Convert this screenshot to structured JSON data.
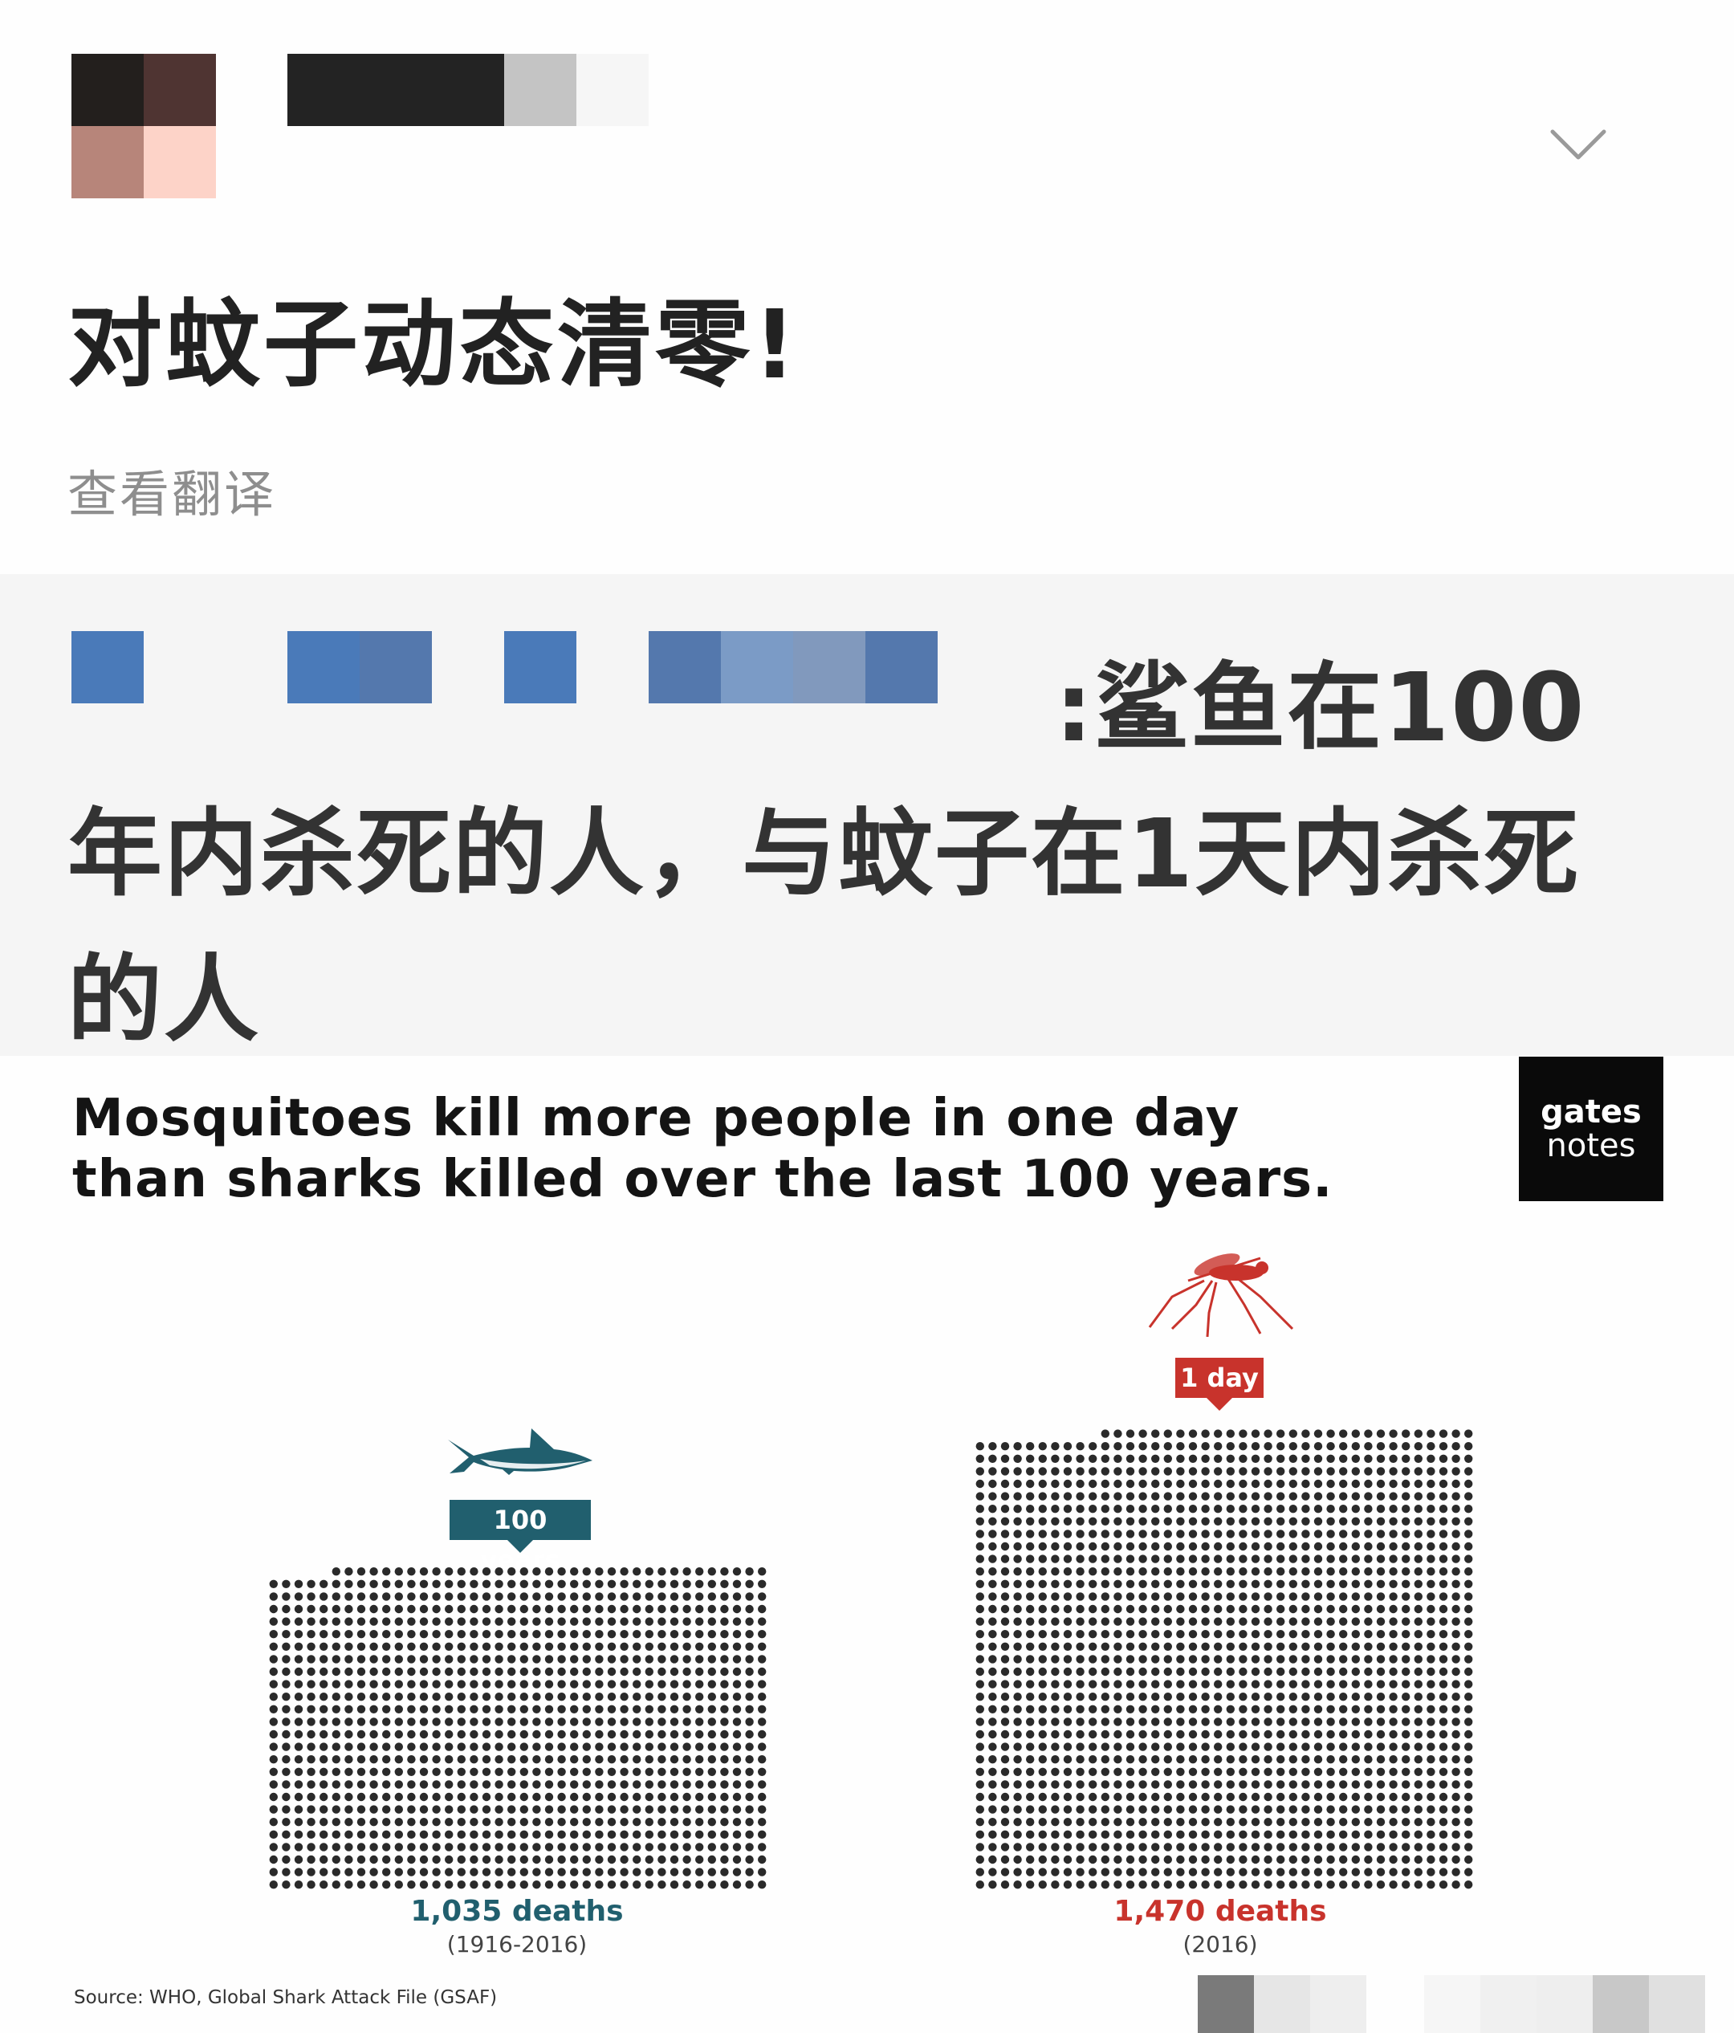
{
  "post": {
    "title": "对蚊子动态清零!",
    "translate_link": "查看翻译"
  },
  "quote": {
    "text_line1": ":鲨鱼在100",
    "text_rest": "年内杀死的人，与蚊子在1天内杀死的人"
  },
  "infographic": {
    "headline_line1": "Mosquitoes kill more people in one day",
    "headline_line2": "than sharks killed over the last 100 years.",
    "logo_line1": "gates",
    "logo_line2": "notes",
    "shark": {
      "tag": "100 years",
      "deaths": "1,035 deaths",
      "period": "(1916-2016)",
      "color": "#215f6e"
    },
    "mosquito": {
      "tag": "1 day",
      "deaths": "1,470 deaths",
      "period": "(2016)",
      "color": "#c8332c"
    },
    "source": "Source: WHO, Global Shark Attack File (GSAF)"
  },
  "chart_data": {
    "type": "bar",
    "categories": [
      "100 years",
      "1 day"
    ],
    "values": [
      1035,
      1470
    ],
    "title": "Mosquitoes kill more people in one day than sharks killed over the last 100 years.",
    "xlabel": "",
    "ylabel": ""
  }
}
